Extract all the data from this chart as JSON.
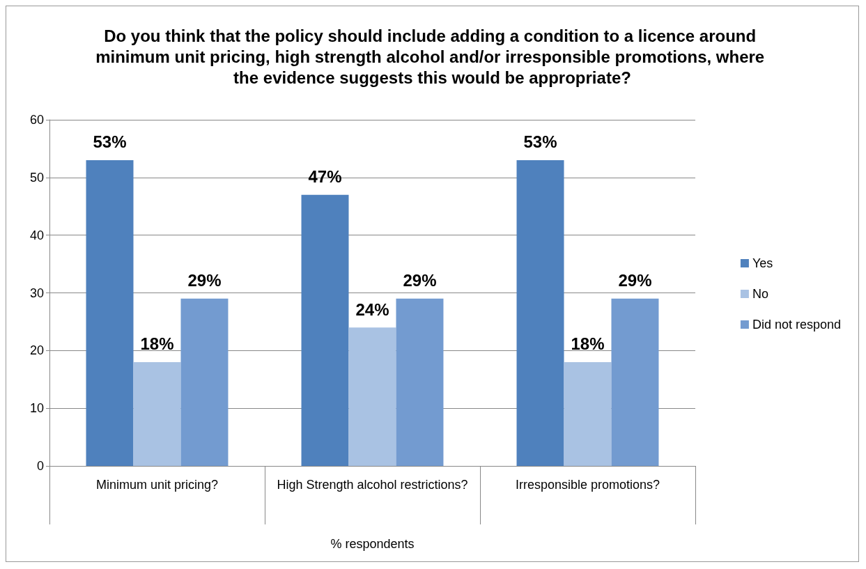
{
  "chart_data": {
    "type": "bar",
    "title": "Do you think that the policy should include adding a condition to a licence around minimum unit pricing, high strength alcohol and/or irresponsible promotions, where the evidence suggests this would be appropriate?",
    "xlabel": "% respondents",
    "categories": [
      "Minimum unit pricing?",
      "High Strength alcohol restrictions?",
      "Irresponsible promotions?"
    ],
    "series": [
      {
        "name": "Yes",
        "color": "#4f81bd",
        "values": [
          53,
          47,
          53
        ],
        "value_labels": [
          "53%",
          "47%",
          "53%"
        ]
      },
      {
        "name": "No",
        "color": "#a9c2e3",
        "values": [
          18,
          24,
          18
        ],
        "value_labels": [
          "18%",
          "24%",
          "18%"
        ]
      },
      {
        "name": "Did not respond",
        "color": "#739bd0",
        "values": [
          29,
          29,
          29
        ],
        "value_labels": [
          "29%",
          "29%",
          "29%"
        ]
      }
    ],
    "ylim": [
      0,
      60
    ],
    "yticks": [
      0,
      10,
      20,
      30,
      40,
      50,
      60
    ],
    "grid": "y",
    "legend": "right"
  }
}
